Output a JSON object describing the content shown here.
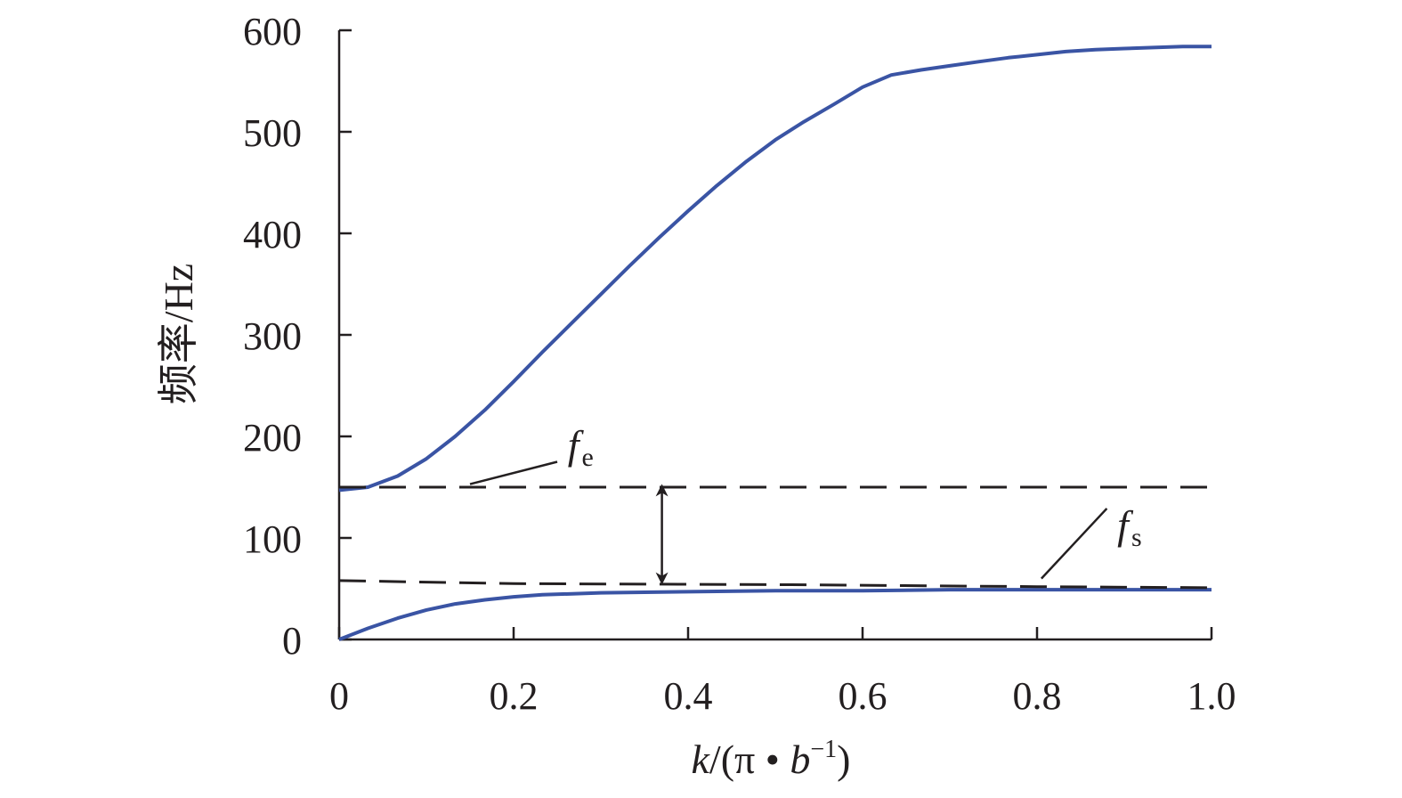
{
  "chart_data": {
    "type": "line",
    "title": "",
    "xlabel": {
      "italic_var": "k",
      "rest": "/(π • ",
      "italic_b": "b",
      "sup": "−1",
      "close": ")"
    },
    "ylabel": "频率/Hz",
    "xlim": [
      0,
      1.0
    ],
    "ylim": [
      0,
      600
    ],
    "x_ticks": [
      "0",
      "0.2",
      "0.4",
      "0.6",
      "0.8",
      "1.0"
    ],
    "y_ticks": [
      "0",
      "100",
      "200",
      "300",
      "400",
      "500",
      "600"
    ],
    "x_tick_values": [
      0,
      0.2,
      0.4,
      0.6,
      0.8,
      1.0
    ],
    "y_tick_values": [
      0,
      100,
      200,
      300,
      400,
      500,
      600
    ],
    "grid": false,
    "series": [
      {
        "style": "solid",
        "color": "#3a54a4",
        "x": [
          0,
          0.033,
          0.067,
          0.1,
          0.133,
          0.167,
          0.2,
          0.233,
          0.267,
          0.3,
          0.333,
          0.367,
          0.4,
          0.433,
          0.467,
          0.5,
          0.533,
          0.567,
          0.6,
          0.633,
          0.667,
          0.7,
          0.733,
          0.767,
          0.8,
          0.833,
          0.867,
          0.9,
          0.933,
          0.967,
          1.0
        ],
        "y": [
          147,
          150,
          161,
          178,
          200,
          226,
          254,
          283,
          312,
          340,
          368,
          396,
          422,
          447,
          471,
          492,
          510,
          527,
          544,
          556,
          561,
          565,
          569,
          573,
          576,
          579,
          581,
          582,
          583,
          584,
          584
        ]
      },
      {
        "style": "solid",
        "color": "#3a54a4",
        "x": [
          0,
          0.033,
          0.067,
          0.1,
          0.133,
          0.167,
          0.2,
          0.233,
          0.267,
          0.3,
          0.4,
          0.5,
          0.6,
          0.7,
          0.8,
          0.9,
          1.0
        ],
        "y": [
          0,
          11,
          21,
          29,
          35,
          39,
          42,
          44,
          45,
          46,
          47,
          48,
          48,
          49,
          49,
          49,
          49
        ]
      },
      {
        "style": "dashed",
        "color": "#231f20",
        "x": [
          0,
          1.0
        ],
        "y": [
          150,
          150
        ]
      },
      {
        "style": "dashed",
        "color": "#231f20",
        "x": [
          0,
          0.2,
          0.5,
          0.8,
          1.0
        ],
        "y": [
          58,
          55,
          54,
          52,
          51
        ]
      }
    ],
    "annotations": [
      {
        "base": "f",
        "sub": "e",
        "line_from": [
          0.15,
          153
        ],
        "line_to": [
          0.25,
          175
        ],
        "text_at": [
          0.262,
          178
        ]
      },
      {
        "base": "f",
        "sub": "s",
        "line_from": [
          0.805,
          60
        ],
        "line_to": [
          0.88,
          129
        ],
        "text_at": [
          0.892,
          99
        ]
      }
    ],
    "arrow": {
      "x": 0.37,
      "y_from": 147,
      "y_to": 60
    }
  }
}
